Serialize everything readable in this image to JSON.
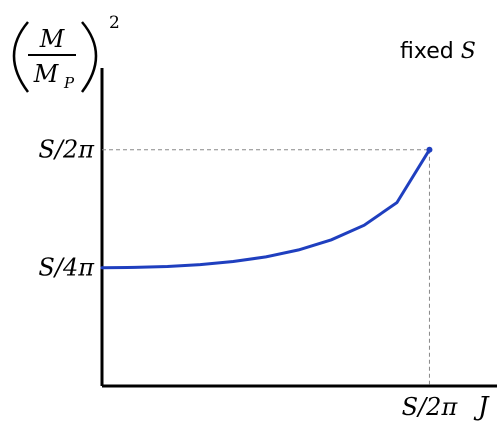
{
  "chart_data": {
    "type": "line",
    "annotation": {
      "prefix": "fixed ",
      "symbol": "S"
    },
    "ylabel": {
      "numerator": "M",
      "denominator": "M",
      "denominator_subscript": "P",
      "exponent": "2"
    },
    "xlabel": "J",
    "x_ticks": [
      {
        "value": 0.159,
        "label": "S/2π"
      }
    ],
    "y_ticks": [
      {
        "value": 0.0796,
        "label": "S/4π"
      },
      {
        "value": 0.159,
        "label": "S/2π"
      }
    ],
    "xlim": [
      0,
      0.185
    ],
    "ylim": [
      0,
      0.214
    ],
    "series": [
      {
        "values": [
          [
            0,
            0.0796
          ],
          [
            0.0159,
            0.0798
          ],
          [
            0.0318,
            0.0804
          ],
          [
            0.0477,
            0.0817
          ],
          [
            0.0637,
            0.0838
          ],
          [
            0.0796,
            0.0869
          ],
          [
            0.0955,
            0.0916
          ],
          [
            0.1114,
            0.0984
          ],
          [
            0.1273,
            0.1082
          ],
          [
            0.1432,
            0.1234
          ],
          [
            0.159,
            0.159
          ]
        ]
      }
    ],
    "guides": "dashed lines from the endpoint to both axes",
    "colors": {
      "curve": "#1f3fbf",
      "axes": "#000000",
      "guides": "#888888"
    },
    "grid": false,
    "legend": "none"
  }
}
